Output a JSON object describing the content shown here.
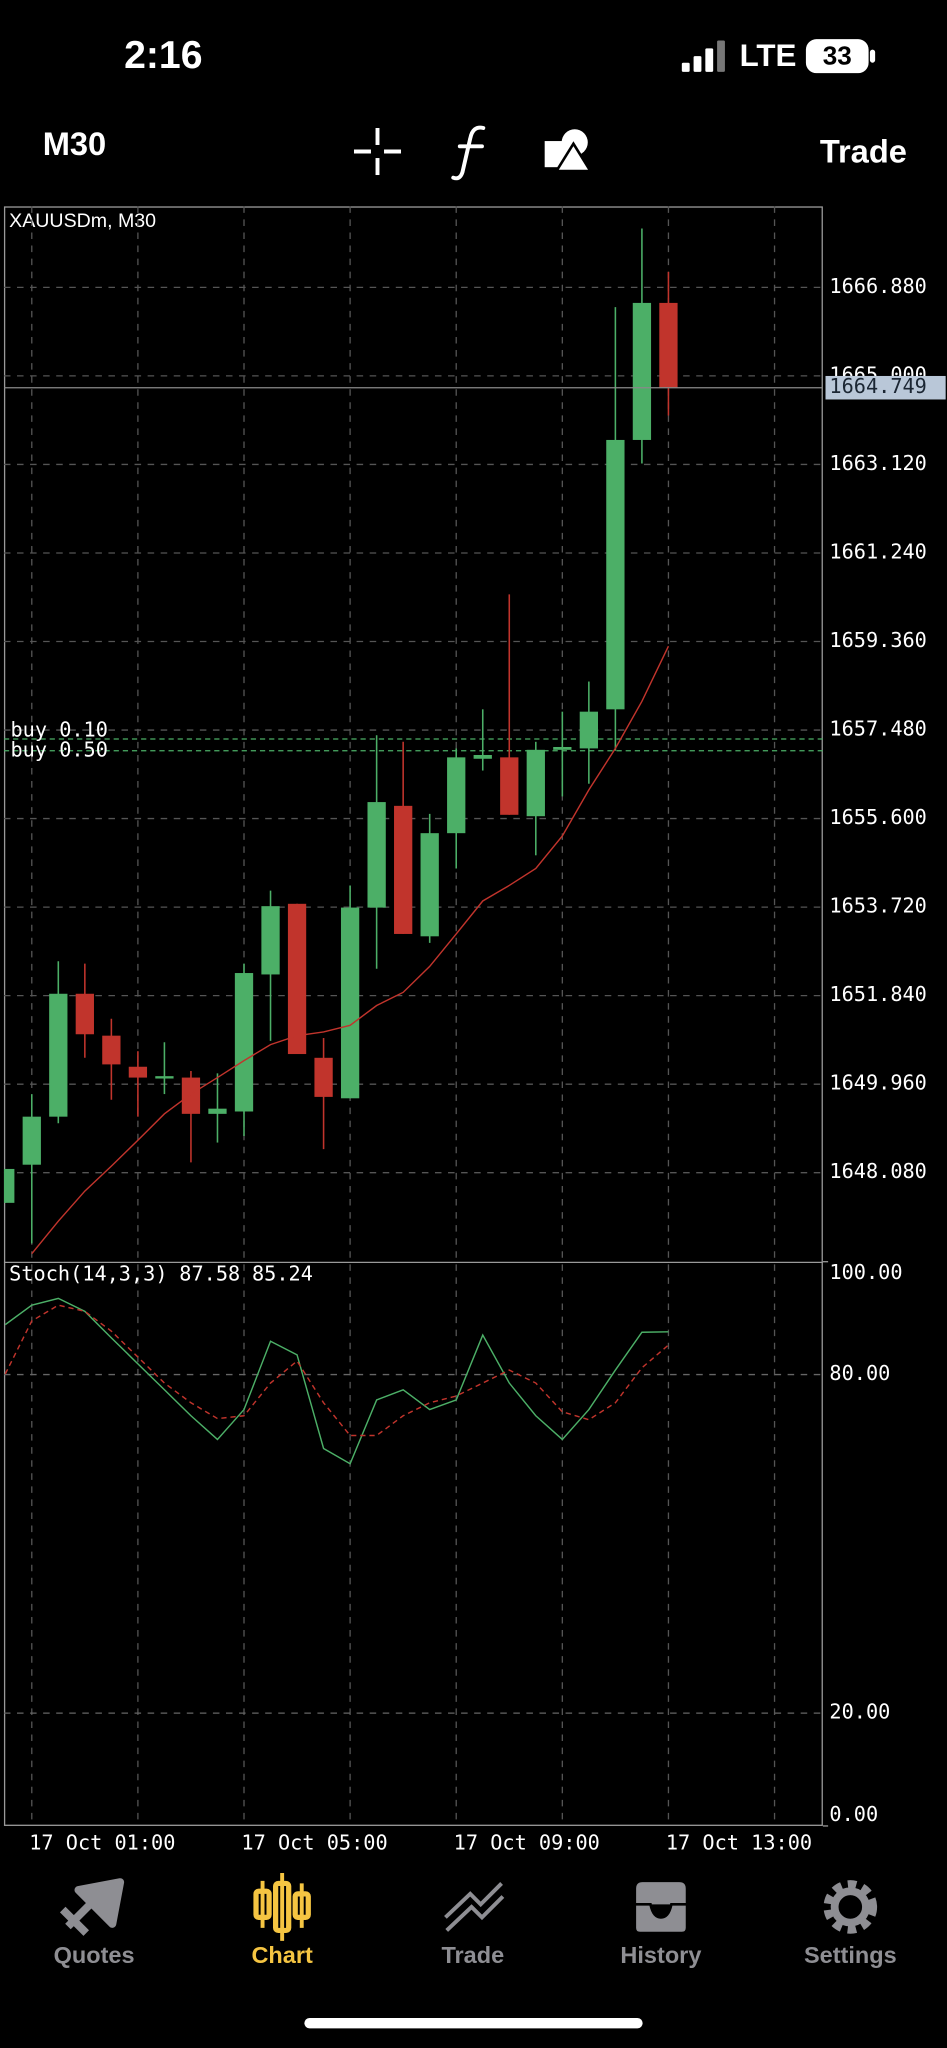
{
  "status_bar": {
    "time": "2:16",
    "network": "LTE",
    "battery": "33"
  },
  "toolbar": {
    "timeframe": "M30",
    "trade": "Trade"
  },
  "chart_data": {
    "type": "candlestick",
    "title": "XAUUSDm, M30",
    "categories": [
      null,
      "17 Oct 01:00",
      null,
      null,
      null,
      null,
      null,
      null,
      null,
      "17 Oct 05:00",
      null,
      null,
      null,
      null,
      null,
      null,
      null,
      "17 Oct 09:00",
      null,
      null,
      null,
      null,
      null,
      null,
      null,
      "17 Oct 13:00"
    ],
    "open": [
      1647.44,
      1648.25,
      1649.27,
      1651.88,
      1650.99,
      1650.33,
      1650.08,
      1650.1,
      1649.33,
      1649.38,
      1652.29,
      1653.79,
      1650.52,
      1649.66,
      1653.71,
      1655.87,
      1653.1,
      1655.29,
      1656.87,
      1656.9,
      1655.65,
      1657.06,
      1657.09,
      1657.92,
      1663.64,
      1666.55
    ],
    "high": [
      1648.16,
      1649.75,
      1652.57,
      1652.52,
      1651.35,
      1650.66,
      1650.85,
      1650.24,
      1650.19,
      1652.52,
      1654.07,
      1653.79,
      1650.94,
      1654.18,
      1657.37,
      1657.23,
      1655.7,
      1657.09,
      1657.92,
      1660.36,
      1657.23,
      1657.87,
      1658.51,
      1666.46,
      1668.13,
      1667.21
    ],
    "low": [
      1647.44,
      1646.58,
      1649.13,
      1650.52,
      1649.63,
      1649.27,
      1649.75,
      1648.3,
      1648.72,
      1648.86,
      1650.88,
      1650.6,
      1648.58,
      1649.66,
      1652.41,
      1653.15,
      1652.96,
      1654.54,
      1656.62,
      1655.68,
      1654.82,
      1656.07,
      1656.34,
      1657.04,
      1663.14,
      1664.16
    ],
    "close": [
      1648.16,
      1649.27,
      1651.88,
      1651.02,
      1650.38,
      1650.1,
      1650.13,
      1649.33,
      1649.44,
      1652.32,
      1653.74,
      1650.6,
      1649.69,
      1653.71,
      1655.95,
      1653.15,
      1655.29,
      1656.9,
      1656.95,
      1655.68,
      1657.06,
      1657.12,
      1657.87,
      1663.64,
      1666.55,
      1664.75
    ],
    "up_color": "#4caf67",
    "down_color": "#c1342c",
    "ylim": [
      1646.19,
      1668.6
    ],
    "yticks": [
      {
        "value": 1648.08,
        "label": "1648.080"
      },
      {
        "value": 1649.96,
        "label": "1649.960"
      },
      {
        "value": 1651.84,
        "label": "1651.840"
      },
      {
        "value": 1653.72,
        "label": "1653.720"
      },
      {
        "value": 1655.6,
        "label": "1655.600"
      },
      {
        "value": 1657.48,
        "label": "1657.480"
      },
      {
        "value": 1659.36,
        "label": "1659.360"
      },
      {
        "value": 1661.24,
        "label": "1661.240"
      },
      {
        "value": 1663.12,
        "label": "1663.120"
      },
      {
        "value": 1665,
        "label": "1665.000"
      },
      {
        "value": 1666.88,
        "label": "1666.880"
      }
    ],
    "grid": true,
    "moving_average": {
      "color": "#c1342c",
      "values": [
        null,
        1646.36,
        1647.05,
        1647.69,
        1648.22,
        1648.77,
        1649.33,
        1649.75,
        1650.1,
        1650.46,
        1650.8,
        1650.99,
        1651.07,
        1651.21,
        1651.63,
        1651.91,
        1652.46,
        1653.15,
        1653.85,
        1654.18,
        1654.54,
        1655.23,
        1656.21,
        1657.09,
        1658.09,
        1659.26
      ]
    },
    "current_price": 1664.749,
    "orders": [
      {
        "label": "buy 0.10",
        "price": 1657.29
      },
      {
        "label": "buy 0.50",
        "price": 1657.04
      }
    ],
    "indicator": {
      "type": "line",
      "title": "Stoch(14,3,3)",
      "series": [
        {
          "color": "#4caf67",
          "dashed": false,
          "values": [
            88.85,
            92.3,
            93.5,
            91.2,
            86.5,
            81.9,
            77.3,
            72.7,
            68.5,
            73.8,
            85.9,
            83.5,
            66.9,
            64.2,
            75.5,
            77.3,
            73.8,
            75.5,
            87.0,
            78.5,
            72.7,
            68.5,
            73.8,
            80.8,
            87.5,
            87.58
          ]
        },
        {
          "color": "#c1342c",
          "dashed": true,
          "values": [
            80.1,
            89.5,
            92.3,
            91.2,
            87.7,
            83.1,
            78.5,
            75.0,
            72.2,
            72.7,
            78.5,
            82.4,
            75.0,
            69.2,
            69.2,
            72.7,
            75.0,
            76.2,
            78.5,
            80.8,
            78.5,
            73.4,
            72.0,
            75.0,
            81.2,
            85.24
          ]
        }
      ],
      "ylim": [
        0,
        100
      ],
      "yticks": [
        {
          "value": 0,
          "label": "0.00"
        },
        {
          "value": 20,
          "label": "20.00"
        },
        {
          "value": 80,
          "label": "80.00"
        },
        {
          "value": 100,
          "label": "100.00"
        }
      ],
      "grid": true
    }
  },
  "tab_bar": {
    "items": [
      "Quotes",
      "Chart",
      "Trade",
      "History",
      "Settings"
    ],
    "active": 1
  }
}
